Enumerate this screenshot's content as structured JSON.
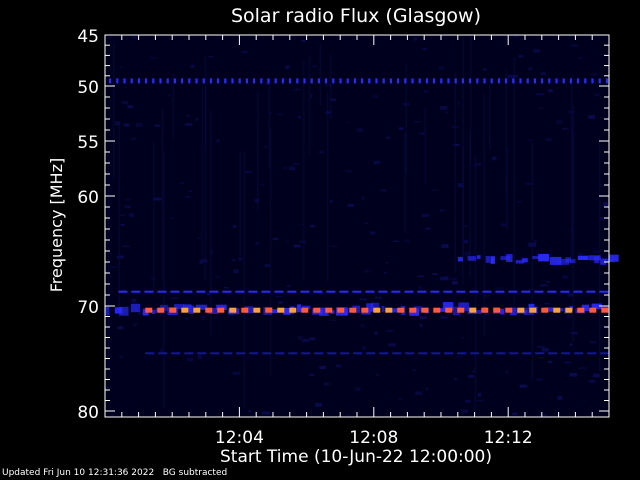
{
  "footer": {
    "updated": "Updated Fri Jun 10 12:31:36 2022",
    "note": "BG subtracted"
  },
  "chart_data": {
    "type": "heatmap",
    "title": "Solar radio Flux (Glasgow)",
    "xlabel": "Start Time (10-Jun-22 12:00:00)",
    "ylabel": "Frequency [MHz]",
    "x_unit": "minutes after 12:00",
    "xlim": [
      0,
      15
    ],
    "ylim": [
      80,
      45
    ],
    "x_ticks": [
      {
        "value": 4,
        "label": "12:04"
      },
      {
        "value": 8,
        "label": "12:08"
      },
      {
        "value": 12,
        "label": "12:12"
      }
    ],
    "y_ticks": [
      {
        "value": 45,
        "label": "45"
      },
      {
        "value": 50,
        "label": "50"
      },
      {
        "value": 55,
        "label": "55"
      },
      {
        "value": 60,
        "label": "60"
      },
      {
        "value": 70,
        "label": "70"
      },
      {
        "value": 80,
        "label": "80"
      }
    ],
    "colors": {
      "background": "#000000",
      "plot_bg": "#00001e",
      "weak": "#1414a0",
      "medium": "#2a2aff",
      "strong": "#ff5a3c",
      "peak": "#ffa040"
    },
    "bands": [
      {
        "freq": 49.5,
        "t_start": 0,
        "t_end": 15,
        "intensity": "medium",
        "style": "dotted"
      },
      {
        "freq": 65.8,
        "t_start": 10.5,
        "t_end": 15,
        "intensity": "medium",
        "style": "patchy"
      },
      {
        "freq": 68.7,
        "t_start": 0.4,
        "t_end": 15,
        "intensity": "medium",
        "style": "dashed"
      },
      {
        "freq": 70.3,
        "t_start": 0,
        "t_end": 15,
        "intensity": "medium",
        "style": "patchy"
      },
      {
        "freq": 70.4,
        "t_start": 1.2,
        "t_end": 15,
        "intensity": "strong",
        "style": "dashed"
      },
      {
        "freq": 74.5,
        "t_start": 1.2,
        "t_end": 15,
        "intensity": "weak",
        "style": "dashed"
      }
    ]
  }
}
